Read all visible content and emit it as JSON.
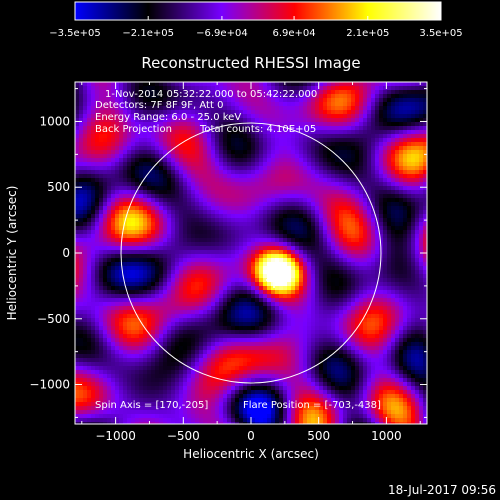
{
  "chart_data": {
    "type": "heatmap",
    "title": "Reconstructed RHESSI Image",
    "xlabel": "Heliocentric X (arcsec)",
    "ylabel": "Heliocentric Y (arcsec)",
    "xlim": [
      -1300,
      1300
    ],
    "ylim": [
      -1300,
      1300
    ],
    "xticks": [
      -1000,
      -500,
      0,
      500,
      1000
    ],
    "yticks": [
      -1000,
      -500,
      0,
      500,
      1000
    ],
    "xtick_labels": [
      "−1000",
      "−500",
      "0",
      "500",
      "1000"
    ],
    "ytick_labels": [
      "−1000",
      "−500",
      "0",
      "500",
      "1000"
    ],
    "colorbar": {
      "min": -350000,
      "max": 350000,
      "tick_values": [
        -350000,
        -210000,
        -69000,
        69000,
        210000,
        350000
      ],
      "tick_labels": [
        "−3.5e+05",
        "−2.1e+05",
        "−6.9e+04",
        "6.9e+04",
        "2.1e+05",
        "3.5e+05"
      ],
      "colormap": [
        "#0000ff",
        "#000000",
        "#7700ff",
        "#ff0000",
        "#ffff00",
        "#ffffff"
      ]
    },
    "annotations": {
      "time_range": "1-Nov-2014 05:32:22.000 to 05:42:22.000",
      "detectors": "Detectors: 7F 8F 9F, Att 0",
      "energy_range": "Energy Range: 6.0 - 25.0 keV",
      "method": "Back Projection",
      "total_counts": "Total counts: 4.10E+05",
      "spin_axis": "Spin Axis = [170,-205]",
      "flare_position": "Flare Position = [-703,-438]"
    },
    "solar_limb": {
      "center": [
        0,
        0
      ],
      "radius_arcsec": 960
    },
    "marker": {
      "type": "cross",
      "x": 170,
      "y": -205
    },
    "footer_timestamp": "18-Jul-2017 09:56"
  },
  "colors": {
    "background": "#000000",
    "axis": "#ffffff",
    "limb": "#ffffff"
  }
}
